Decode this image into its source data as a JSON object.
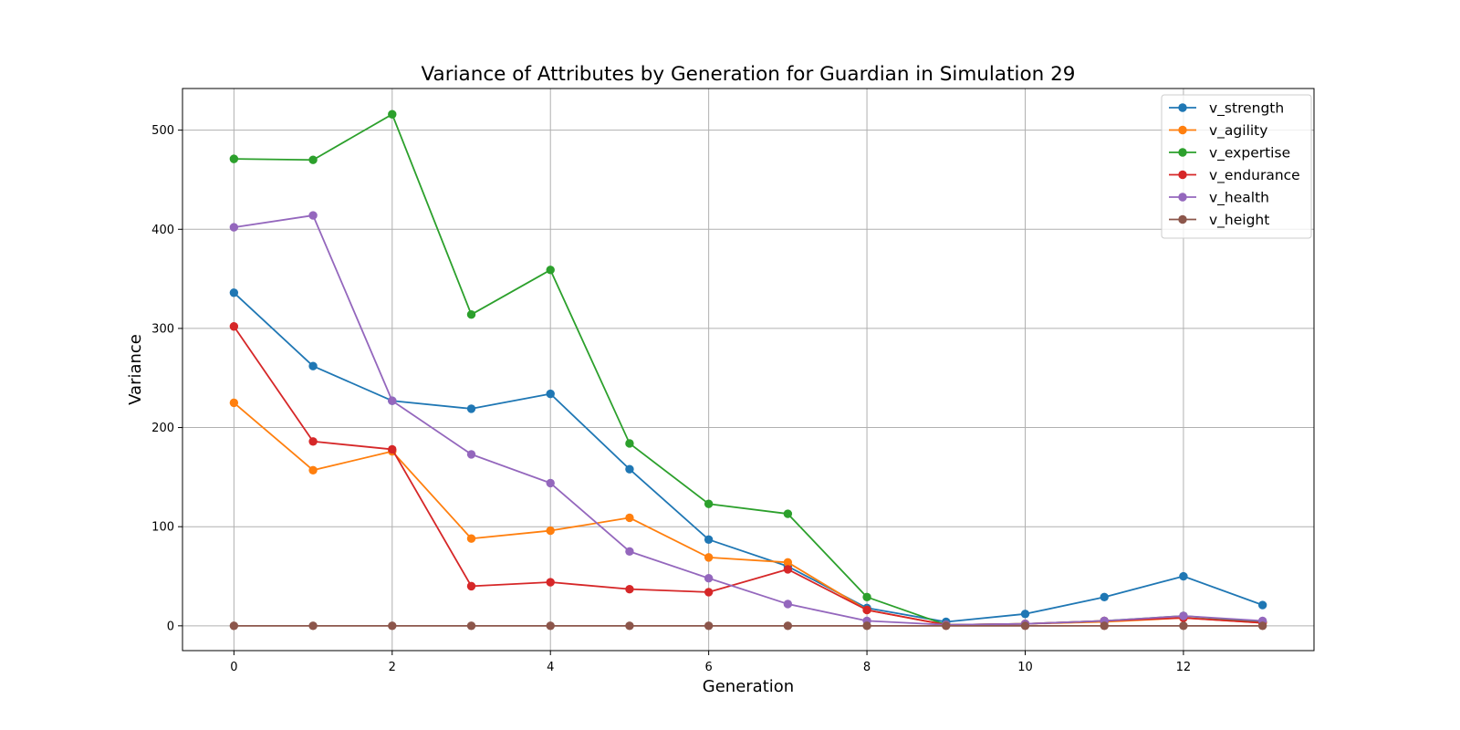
{
  "chart_data": {
    "type": "line",
    "title": "Variance of Attributes by Generation for Guardian in Simulation 29",
    "xlabel": "Generation",
    "ylabel": "Variance",
    "x": [
      0,
      1,
      2,
      3,
      4,
      5,
      6,
      7,
      8,
      9,
      10,
      11,
      12,
      13
    ],
    "xlim": [
      -0.65,
      13.65
    ],
    "ylim": [
      -25,
      542
    ],
    "xticks": [
      0,
      2,
      4,
      6,
      8,
      10,
      12
    ],
    "yticks": [
      0,
      100,
      200,
      300,
      400,
      500
    ],
    "grid": true,
    "legend_position": "top-right",
    "series": [
      {
        "name": "v_strength",
        "color": "#1f77b4",
        "values": [
          336,
          262,
          227,
          219,
          234,
          158,
          87,
          60,
          18,
          4,
          12,
          29,
          50,
          21
        ]
      },
      {
        "name": "v_agility",
        "color": "#ff7f0e",
        "values": [
          225,
          157,
          176,
          88,
          96,
          109,
          69,
          64,
          16,
          1,
          2,
          4,
          8,
          3
        ]
      },
      {
        "name": "v_expertise",
        "color": "#2ca02c",
        "values": [
          471,
          470,
          516,
          314,
          359,
          184,
          123,
          113,
          29,
          1,
          2,
          5,
          10,
          4
        ]
      },
      {
        "name": "v_endurance",
        "color": "#d62728",
        "values": [
          302,
          186,
          178,
          40,
          44,
          37,
          34,
          57,
          16,
          1,
          2,
          5,
          8,
          3
        ]
      },
      {
        "name": "v_health",
        "color": "#9467bd",
        "values": [
          402,
          414,
          227,
          173,
          144,
          75,
          48,
          22,
          5,
          1,
          2,
          5,
          10,
          5
        ]
      },
      {
        "name": "v_height",
        "color": "#8c564b",
        "values": [
          0,
          0,
          0,
          0,
          0,
          0,
          0,
          0,
          0,
          0,
          0,
          0,
          0,
          0
        ]
      }
    ]
  }
}
